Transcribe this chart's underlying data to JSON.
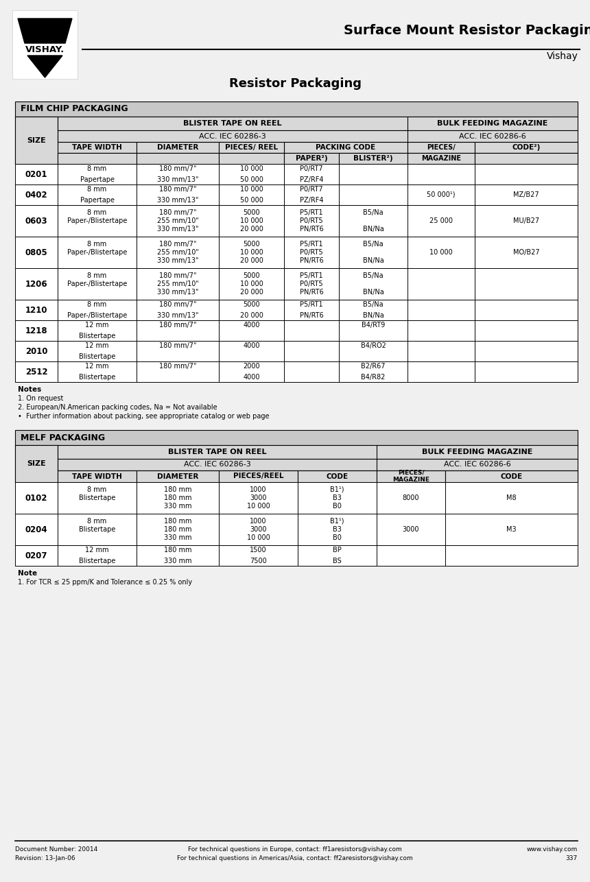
{
  "page_title_main": "Surface Mount Resistor Packaging",
  "page_title_sub": "Vishay",
  "page_subtitle": "Resistor Packaging",
  "film_title": "FILM CHIP PACKAGING",
  "film_rows": [
    {
      "size": "0201",
      "tape": [
        "8 mm",
        "Papertape"
      ],
      "diam": [
        "180 mm/7\"",
        "330 mm/13\""
      ],
      "pcs": [
        "10 000",
        "50 000"
      ],
      "paper": [
        "P0/RT7",
        "PZ/RF4"
      ],
      "blister": [
        "",
        ""
      ],
      "mag": "",
      "code": ""
    },
    {
      "size": "0402",
      "tape": [
        "8 mm",
        "Papertape"
      ],
      "diam": [
        "180 mm/7\"",
        "330 mm/13\""
      ],
      "pcs": [
        "10 000",
        "50 000"
      ],
      "paper": [
        "P0/RT7",
        "PZ/RF4"
      ],
      "blister": [
        "",
        ""
      ],
      "mag": "50 000¹)",
      "code": "MZ/B27"
    },
    {
      "size": "0603",
      "tape": [
        "8 mm",
        "Paper-/Blistertape",
        ""
      ],
      "diam": [
        "180 mm/7\"",
        "255 mm/10\"",
        "330 mm/13\""
      ],
      "pcs": [
        "5000",
        "10 000",
        "20 000"
      ],
      "paper": [
        "P5/RT1",
        "P0/RT5",
        "PN/RT6"
      ],
      "blister": [
        "B5/Na",
        "",
        "BN/Na"
      ],
      "mag": "25 000",
      "code": "MU/B27"
    },
    {
      "size": "0805",
      "tape": [
        "8 mm",
        "Paper-/Blistertape",
        ""
      ],
      "diam": [
        "180 mm/7\"",
        "255 mm/10\"",
        "330 mm/13\""
      ],
      "pcs": [
        "5000",
        "10 000",
        "20 000"
      ],
      "paper": [
        "P5/RT1",
        "P0/RT5",
        "PN/RT6"
      ],
      "blister": [
        "B5/Na",
        "",
        "BN/Na"
      ],
      "mag": "10 000",
      "code": "MO/B27"
    },
    {
      "size": "1206",
      "tape": [
        "8 mm",
        "Paper-/Blistertape",
        ""
      ],
      "diam": [
        "180 mm/7\"",
        "255 mm/10\"",
        "330 mm/13\""
      ],
      "pcs": [
        "5000",
        "10 000",
        "20 000"
      ],
      "paper": [
        "P5/RT1",
        "P0/RT5",
        "PN/RT6"
      ],
      "blister": [
        "B5/Na",
        "",
        "BN/Na"
      ],
      "mag": "",
      "code": ""
    },
    {
      "size": "1210",
      "tape": [
        "8 mm",
        "Paper-/Blistertape"
      ],
      "diam": [
        "180 mm/7\"",
        "330 mm/13\""
      ],
      "pcs": [
        "5000",
        "20 000"
      ],
      "paper": [
        "P5/RT1",
        "PN/RT6"
      ],
      "blister": [
        "B5/Na",
        "BN/Na"
      ],
      "mag": "",
      "code": ""
    },
    {
      "size": "1218",
      "tape": [
        "12 mm",
        "Blistertape"
      ],
      "diam": [
        "180 mm/7\""
      ],
      "pcs": [
        "4000"
      ],
      "paper": [
        ""
      ],
      "blister": [
        "B4/RT9"
      ],
      "mag": "",
      "code": ""
    },
    {
      "size": "2010",
      "tape": [
        "12 mm",
        "Blistertape"
      ],
      "diam": [
        "180 mm/7\""
      ],
      "pcs": [
        "4000"
      ],
      "paper": [
        ""
      ],
      "blister": [
        "B4/RO2"
      ],
      "mag": "",
      "code": ""
    },
    {
      "size": "2512",
      "tape": [
        "12 mm",
        "Blistertape"
      ],
      "diam": [
        "180 mm/7\""
      ],
      "pcs": [
        "2000",
        "4000"
      ],
      "paper": [
        ""
      ],
      "blister": [
        "B2/R67",
        "B4/R82"
      ],
      "mag": "",
      "code": ""
    }
  ],
  "film_notes": [
    "Notes",
    "1. On request",
    "2. European/N.American packing codes, Na = Not available",
    "•  Further information about packing, see appropriate catalog or web page"
  ],
  "melf_title": "MELF PACKAGING",
  "melf_rows": [
    {
      "size": "0102",
      "tape": [
        "8 mm",
        "Blistertape",
        ""
      ],
      "diam": [
        "180 mm",
        "180 mm",
        "330 mm"
      ],
      "pcs": [
        "1000",
        "3000",
        "10 000"
      ],
      "code": [
        "B1¹)",
        "B3",
        "B0"
      ],
      "mag": "8000",
      "mcode": "M8"
    },
    {
      "size": "0204",
      "tape": [
        "8 mm",
        "Blistertape",
        ""
      ],
      "diam": [
        "180 mm",
        "180 mm",
        "330 mm"
      ],
      "pcs": [
        "1000",
        "3000",
        "10 000"
      ],
      "code": [
        "B1¹)",
        "B3",
        "B0"
      ],
      "mag": "3000",
      "mcode": "M3"
    },
    {
      "size": "0207",
      "tape": [
        "12 mm",
        "Blistertape"
      ],
      "diam": [
        "180 mm",
        "330 mm"
      ],
      "pcs": [
        "1500",
        "7500"
      ],
      "code": [
        "BP",
        "BS"
      ],
      "mag": "",
      "mcode": ""
    }
  ],
  "melf_notes": [
    "Note",
    "1. For TCR ≤ 25 ppm/K and Tolerance ≤ 0.25 % only"
  ],
  "footer_left": [
    "Document Number: 20014",
    "Revision: 13-Jan-06"
  ],
  "footer_mid": [
    "For technical questions in Europe, contact: ff1aresistors@vishay.com",
    "For technical questions in Americas/Asia, contact: ff2aresistors@vishay.com"
  ],
  "footer_right": [
    "www.vishay.com",
    "337"
  ],
  "header_gray": "#c8c8c8",
  "subheader_gray": "#d8d8d8",
  "page_bg": "#f0f0f0",
  "table_border": "#000000",
  "white": "#ffffff"
}
